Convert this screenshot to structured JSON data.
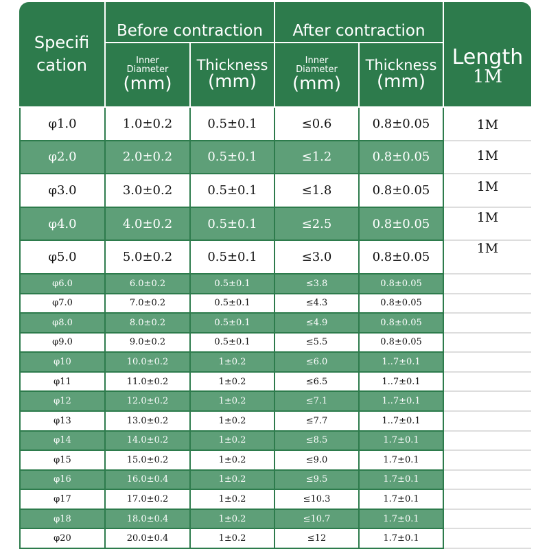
{
  "header": {
    "spec_label": [
      "Specifi",
      "cation"
    ],
    "groups": [
      "Before contraction",
      "After contraction"
    ],
    "subheaders": [
      {
        "top": "Inner",
        "middle": "Diameter",
        "unit": "(mm)"
      },
      {
        "top": "Thickness",
        "unit": "(mm)"
      },
      {
        "top": "Inner",
        "middle": "Diameter",
        "unit": "(mm)"
      },
      {
        "top": "Thickness",
        "unit": "(mm)"
      }
    ],
    "length_label": [
      "Length",
      "1M"
    ]
  },
  "table": {
    "rows": [
      [
        "φ1.0",
        "1.0±0.2",
        "0.5±0.1",
        "≤0.6",
        "0.8±0.05"
      ],
      [
        "φ2.0",
        "2.0±0.2",
        "0.5±0.1",
        "≤1.2",
        "0.8±0.05"
      ],
      [
        "φ3.0",
        "3.0±0.2",
        "0.5±0.1",
        "≤1.8",
        "0.8±0.05"
      ],
      [
        "φ4.0",
        "4.0±0.2",
        "0.5±0.1",
        "≤2.5",
        "0.8±0.05"
      ],
      [
        "φ5.0",
        "5.0±0.2",
        "0.5±0.1",
        "≤3.0",
        "0.8±0.05"
      ],
      [
        "φ6.0",
        "6.0±0.2",
        "0.5±0.1",
        "≤3.8",
        "0.8±0.05"
      ],
      [
        "φ7.0",
        "7.0±0.2",
        "0.5±0.1",
        "≤4.3",
        "0.8±0.05"
      ],
      [
        "φ8.0",
        "8.0±0.2",
        "0.5±0.1",
        "≤4.9",
        "0.8±0.05"
      ],
      [
        "φ9.0",
        "9.0±0.2",
        "0.5±0.1",
        "≤5.5",
        "0.8±0.05"
      ],
      [
        "φ10",
        "10.0±0.2",
        "1±0.2",
        "≤6.0",
        "1..7±0.1"
      ],
      [
        "φ11",
        "11.0±0.2",
        "1±0.2",
        "≤6.5",
        "1..7±0.1"
      ],
      [
        "φ12",
        "12.0±0.2",
        "1±0.2",
        "≤7.1",
        "1..7±0.1"
      ],
      [
        "φ13",
        "13.0±0.2",
        "1±0.2",
        "≤7.7",
        "1..7±0.1"
      ],
      [
        "φ14",
        "14.0±0.2",
        "1±0.2",
        "≤8.5",
        "1.7±0.1"
      ],
      [
        "φ15",
        "15.0±0.2",
        "1±0.2",
        "≤9.0",
        "1.7±0.1"
      ],
      [
        "φ16",
        "16.0±0.4",
        "1±0.2",
        "≤9.5",
        "1.7±0.1"
      ],
      [
        "φ17",
        "17.0±0.2",
        "1±0.2",
        "≤10.3",
        "1.7±0.1"
      ],
      [
        "φ18",
        "18.0±0.4",
        "1±0.2",
        "≤10.7",
        "1.7±0.1"
      ],
      [
        "φ20",
        "20.0±0.4",
        "1±0.2",
        "≤12",
        "1.7±0.1"
      ]
    ],
    "length_values": [
      "1M",
      "1M",
      "1M",
      "1M",
      "1M"
    ]
  }
}
